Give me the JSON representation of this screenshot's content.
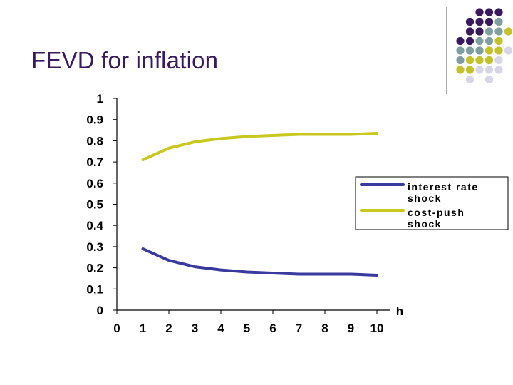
{
  "slide": {
    "title": "FEVD for inflation"
  },
  "decoration": {
    "dot_colors": [
      "#3a1a5e",
      "#7f9ea0",
      "#c4c22a",
      "#d6d6e6"
    ]
  },
  "chart_data": {
    "type": "line",
    "title": "",
    "xlabel": "h",
    "ylabel": "",
    "x": [
      1,
      2,
      3,
      4,
      5,
      6,
      7,
      8,
      9,
      10
    ],
    "x_ticks": [
      "0",
      "1",
      "2",
      "3",
      "4",
      "5",
      "6",
      "7",
      "8",
      "9",
      "10"
    ],
    "y_ticks": [
      "0",
      "0.1",
      "0.2",
      "0.3",
      "0.4",
      "0.5",
      "0.6",
      "0.7",
      "0.8",
      "0.9",
      "1"
    ],
    "xlim": [
      0,
      10
    ],
    "ylim": [
      0,
      1
    ],
    "grid": false,
    "legend_position": "right",
    "series": [
      {
        "name": "interest rate shock",
        "legend_lines": [
          "interest rate",
          "shock"
        ],
        "color": "#3a3a9e",
        "values": [
          0.29,
          0.235,
          0.205,
          0.19,
          0.18,
          0.175,
          0.17,
          0.17,
          0.17,
          0.165
        ]
      },
      {
        "name": "cost-push shock",
        "legend_lines": [
          "cost-push",
          "shock"
        ],
        "color": "#c8c81e",
        "values": [
          0.71,
          0.765,
          0.795,
          0.81,
          0.82,
          0.825,
          0.83,
          0.83,
          0.83,
          0.835
        ]
      }
    ]
  }
}
